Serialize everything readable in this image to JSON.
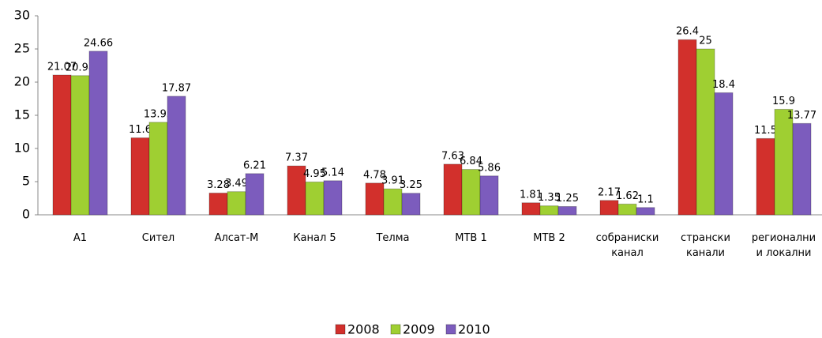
{
  "chart_data": {
    "type": "bar",
    "categories": [
      "A1",
      "Сител",
      "Алсат-М",
      "Канал 5",
      "Телма",
      "МТВ 1",
      "МТВ 2",
      "собраниски канал",
      "странски канали",
      "регионални и локални"
    ],
    "series": [
      {
        "name": "2008",
        "color": "#d2302c",
        "values": [
          21.07,
          11.6,
          3.28,
          7.37,
          4.78,
          7.63,
          1.81,
          2.17,
          26.4,
          11.5
        ]
      },
      {
        "name": "2009",
        "color": "#9fcf32",
        "values": [
          20.98,
          13.95,
          3.49,
          4.95,
          3.91,
          6.84,
          1.35,
          1.62,
          25,
          15.9
        ]
      },
      {
        "name": "2010",
        "color": "#7c5cbd",
        "values": [
          24.66,
          17.87,
          6.21,
          5.14,
          3.25,
          5.86,
          1.25,
          1.1,
          18.4,
          13.77
        ]
      }
    ],
    "ylim": [
      0,
      30
    ],
    "yticks": [
      0,
      5,
      10,
      15,
      20,
      25,
      30
    ],
    "grid": false,
    "legend": "bottom"
  }
}
